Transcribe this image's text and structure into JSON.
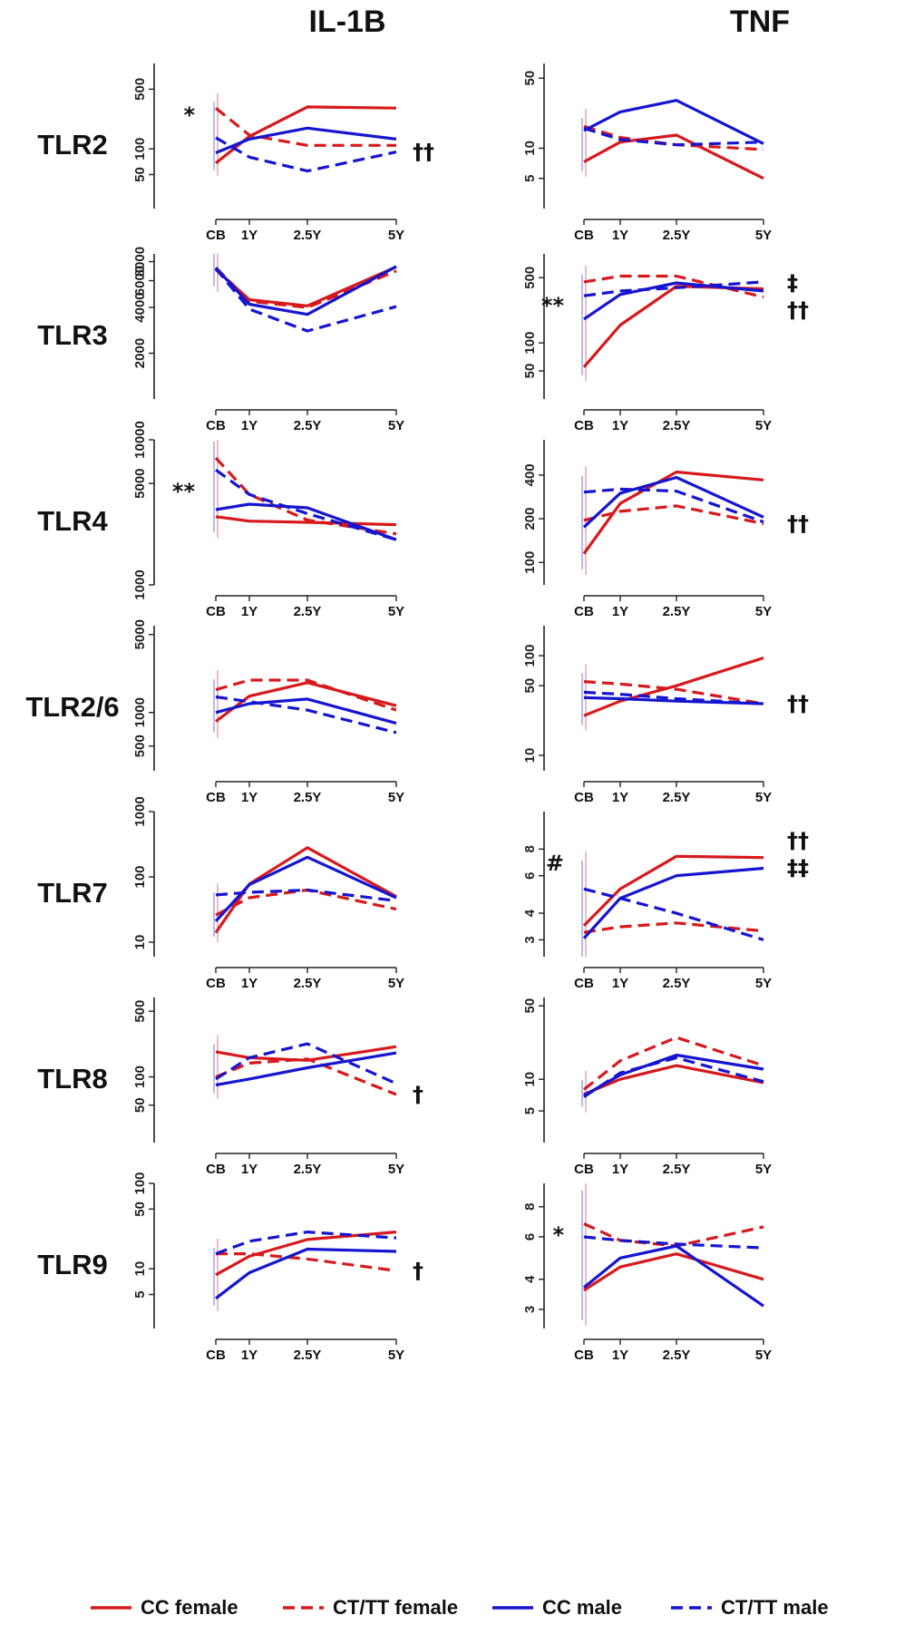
{
  "colors": {
    "red": "#d7191c",
    "blue": "#1515d0",
    "axis": "#222222"
  },
  "legend": [
    {
      "label": "CC female",
      "color": "#d7191c",
      "dash": false
    },
    {
      "label": "CT/TT female",
      "color": "#d7191c",
      "dash": true
    },
    {
      "label": "CC male",
      "color": "#1515d0",
      "dash": false
    },
    {
      "label": "CT/TT male",
      "color": "#1515d0",
      "dash": true
    }
  ],
  "chart_data": {
    "type": "line",
    "columns": [
      "IL-1B",
      "TNF"
    ],
    "rows": [
      "TLR2",
      "TLR3",
      "TLR4",
      "TLR2/6",
      "TLR7",
      "TLR8",
      "TLR9"
    ],
    "x": [
      "CB",
      "1Y",
      "2.5Y",
      "5Y"
    ],
    "series_names": [
      "CC female",
      "CT/TT female",
      "CC male",
      "CT/TT male"
    ],
    "panels": [
      {
        "row": "TLR2",
        "column": "IL-1B",
        "ylim": [
          20,
          1000
        ],
        "yticks": [
          50,
          100,
          500
        ],
        "series": [
          [
            68,
            140,
            310,
            300
          ],
          [
            300,
            145,
            110,
            110
          ],
          [
            90,
            130,
            175,
            130
          ],
          [
            135,
            80,
            55,
            92
          ]
        ],
        "marks": [
          {
            "text": "*",
            "side": "left"
          },
          {
            "text": "††",
            "side": "right"
          }
        ]
      },
      {
        "row": "TLR2",
        "column": "TNF",
        "ylim": [
          2.5,
          70
        ],
        "yticks": [
          5,
          10,
          50
        ],
        "series": [
          [
            7.3,
            11.5,
            13.5,
            5
          ],
          [
            16.5,
            12.8,
            10.8,
            9.7
          ],
          [
            15,
            23,
            30,
            11.1
          ],
          [
            15.8,
            12.2,
            10.8,
            11.5
          ]
        ],
        "marks": []
      },
      {
        "row": "TLR3",
        "column": "IL-1B",
        "ylim": [
          1000,
          9000
        ],
        "yticks": [
          2000,
          4000,
          6000,
          8000
        ],
        "series": [
          [
            7100,
            4500,
            4100,
            7400
          ],
          [
            7300,
            4400,
            4000,
            6950
          ],
          [
            7300,
            4200,
            3600,
            7450
          ],
          [
            7200,
            3900,
            2800,
            4050
          ]
        ],
        "marks": []
      },
      {
        "row": "TLR3",
        "column": "TNF",
        "ylim": [
          25,
          900
        ],
        "yticks": [
          50,
          100,
          500
        ],
        "series": [
          [
            55,
            155,
            405,
            380
          ],
          [
            450,
            520,
            520,
            310
          ],
          [
            180,
            330,
            440,
            360
          ],
          [
            320,
            360,
            390,
            450
          ]
        ],
        "marks": [
          {
            "text": "**",
            "side": "left"
          },
          {
            "text": "‡",
            "side": "right"
          },
          {
            "text": "††",
            "side": "right"
          }
        ]
      },
      {
        "row": "TLR4",
        "column": "IL-1B",
        "ylim": [
          1000,
          10000
        ],
        "yticks": [
          1000,
          5000,
          10000
        ],
        "series": [
          [
            2950,
            2750,
            2700,
            2600
          ],
          [
            7500,
            4200,
            2800,
            2250
          ],
          [
            3300,
            3600,
            3400,
            2050
          ],
          [
            6200,
            4200,
            3100,
            2050
          ]
        ],
        "marks": [
          {
            "text": "**",
            "side": "left"
          }
        ]
      },
      {
        "row": "TLR4",
        "column": "TNF",
        "ylim": [
          70,
          700
        ],
        "yticks": [
          100,
          200,
          400
        ],
        "series": [
          [
            115,
            255,
            420,
            370
          ],
          [
            195,
            225,
            245,
            185
          ],
          [
            175,
            300,
            385,
            205
          ],
          [
            305,
            320,
            310,
            190
          ]
        ],
        "marks": [
          {
            "text": "††",
            "side": "right"
          }
        ]
      },
      {
        "row": "TLR2/6",
        "column": "IL-1B",
        "ylim": [
          300,
          6000
        ],
        "yticks": [
          500,
          1000,
          5000
        ],
        "series": [
          [
            830,
            1400,
            1850,
            1150
          ],
          [
            1600,
            1950,
            1950,
            1050
          ],
          [
            1000,
            1200,
            1320,
            800
          ],
          [
            1380,
            1250,
            1050,
            660
          ]
        ],
        "marks": []
      },
      {
        "row": "TLR2/6",
        "column": "TNF",
        "ylim": [
          7,
          200
        ],
        "yticks": [
          10,
          50,
          100
        ],
        "series": [
          [
            25,
            35,
            50,
            95
          ],
          [
            55,
            52,
            46,
            33
          ],
          [
            38,
            37,
            35,
            33
          ],
          [
            43,
            41,
            37,
            33
          ]
        ],
        "marks": [
          {
            "text": "††",
            "side": "right"
          }
        ]
      },
      {
        "row": "TLR7",
        "column": "IL-1B",
        "ylim": [
          6,
          1000
        ],
        "yticks": [
          10,
          100,
          1000
        ],
        "series": [
          [
            14,
            78,
            280,
            50
          ],
          [
            26,
            48,
            63,
            32
          ],
          [
            21,
            76,
            200,
            48
          ],
          [
            53,
            58,
            63,
            43
          ]
        ],
        "marks": []
      },
      {
        "row": "TLR7",
        "column": "TNF",
        "ylim": [
          2.5,
          12
        ],
        "yticks": [
          3,
          4,
          6,
          8
        ],
        "series": [
          [
            3.5,
            5.2,
            7.4,
            7.3
          ],
          [
            3.25,
            3.45,
            3.6,
            3.3
          ],
          [
            3.05,
            4.7,
            6.0,
            6.5
          ],
          [
            5.2,
            4.7,
            4.0,
            3.0
          ]
        ],
        "marks": [
          {
            "text": "#",
            "side": "left"
          },
          {
            "text": "††",
            "side": "right"
          },
          {
            "text": "‡‡",
            "side": "right"
          }
        ]
      },
      {
        "row": "TLR8",
        "column": "IL-1B",
        "ylim": [
          20,
          700
        ],
        "yticks": [
          50,
          100,
          500
        ],
        "series": [
          [
            185,
            160,
            150,
            210
          ],
          [
            100,
            140,
            155,
            65
          ],
          [
            82,
            95,
            125,
            180
          ],
          [
            95,
            160,
            225,
            85
          ]
        ],
        "marks": [
          {
            "text": "†",
            "side": "right"
          }
        ]
      },
      {
        "row": "TLR8",
        "column": "TNF",
        "ylim": [
          2.5,
          60
        ],
        "yticks": [
          5,
          10,
          50
        ],
        "series": [
          [
            7.2,
            10,
            13.5,
            9.3
          ],
          [
            8,
            15,
            25,
            13.5
          ],
          [
            7,
            11,
            17,
            12.5
          ],
          [
            6.8,
            11.5,
            16,
            9.5
          ]
        ],
        "marks": []
      },
      {
        "row": "TLR9",
        "column": "IL-1B",
        "ylim": [
          2,
          100
        ],
        "yticks": [
          5,
          10,
          50,
          100
        ],
        "series": [
          [
            8.5,
            14,
            22,
            27
          ],
          [
            15,
            15,
            13,
            9.5
          ],
          [
            4.5,
            9,
            17,
            16
          ],
          [
            15,
            21,
            27,
            23
          ]
        ],
        "marks": [
          {
            "text": "†",
            "side": "right"
          }
        ]
      },
      {
        "row": "TLR9",
        "column": "TNF",
        "ylim": [
          2.5,
          10
        ],
        "yticks": [
          3,
          4,
          6,
          8
        ],
        "series": [
          [
            3.6,
            4.5,
            5.1,
            4.0
          ],
          [
            6.8,
            5.8,
            5.5,
            6.6
          ],
          [
            3.7,
            4.9,
            5.5,
            3.1
          ],
          [
            6.0,
            5.8,
            5.6,
            5.4
          ]
        ],
        "marks": [
          {
            "text": "*",
            "side": "left"
          }
        ]
      }
    ]
  }
}
